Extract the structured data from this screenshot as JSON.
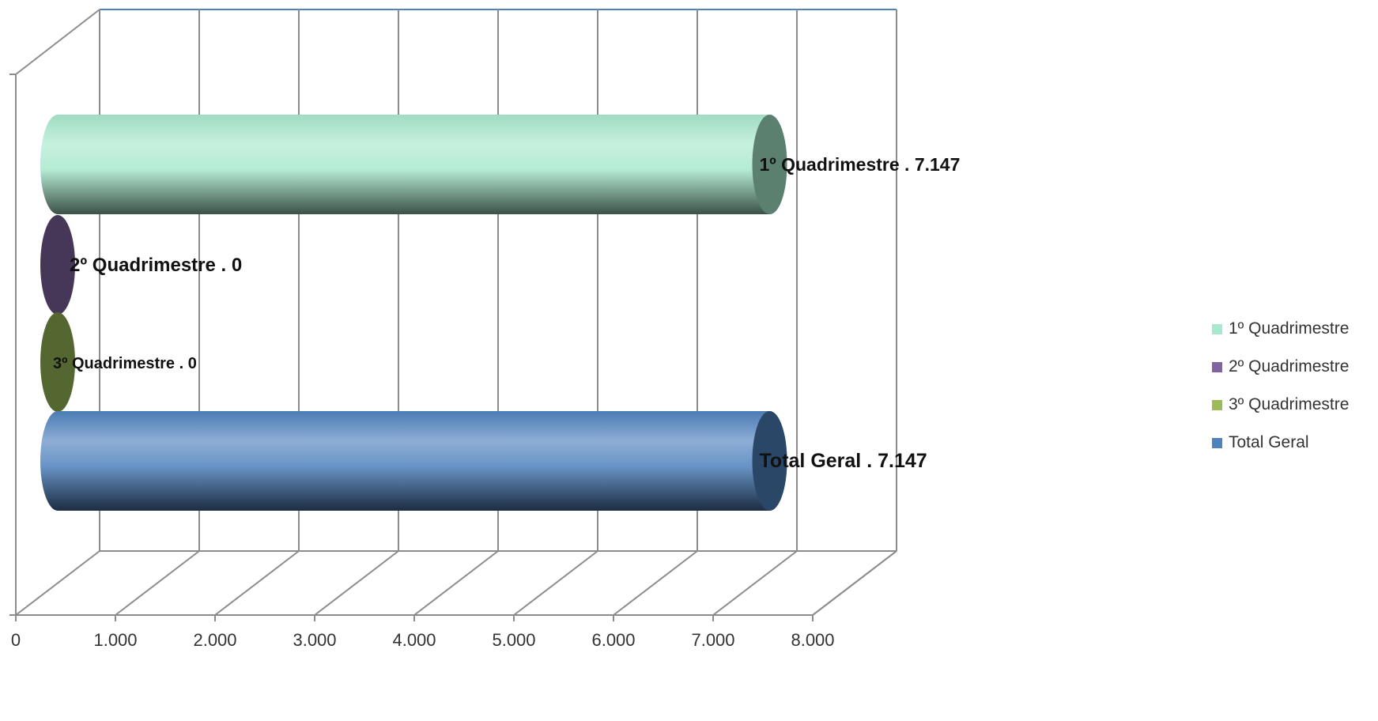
{
  "chart_data": {
    "type": "bar",
    "orientation": "horizontal",
    "style": "3d-cylinder",
    "title": "",
    "xlabel": "",
    "ylabel": "",
    "xlim": [
      0,
      8000
    ],
    "x_ticks": [
      0,
      1000,
      2000,
      3000,
      4000,
      5000,
      6000,
      7000,
      8000
    ],
    "x_tick_labels": [
      "0",
      "1.000",
      "2.000",
      "3.000",
      "4.000",
      "5.000",
      "6.000",
      "7.000",
      "8.000"
    ],
    "grid": "vertical",
    "legend_position": "right",
    "series": [
      {
        "name": "1º Quadrimestre",
        "value": 7147,
        "data_label": "1º Quadrimestre . 7.147",
        "color": "#a8e8cc"
      },
      {
        "name": "2º Quadrimestre",
        "value": 0,
        "data_label": "2º Quadrimestre . 0",
        "color": "#8064a2"
      },
      {
        "name": "3º Quadrimestre",
        "value": 0,
        "data_label": "3º Quadrimestre . 0",
        "color": "#9bbb59"
      },
      {
        "name": "Total  Geral",
        "value": 7147,
        "data_label": "Total  Geral . 7.147",
        "color": "#4f81bd"
      }
    ]
  }
}
